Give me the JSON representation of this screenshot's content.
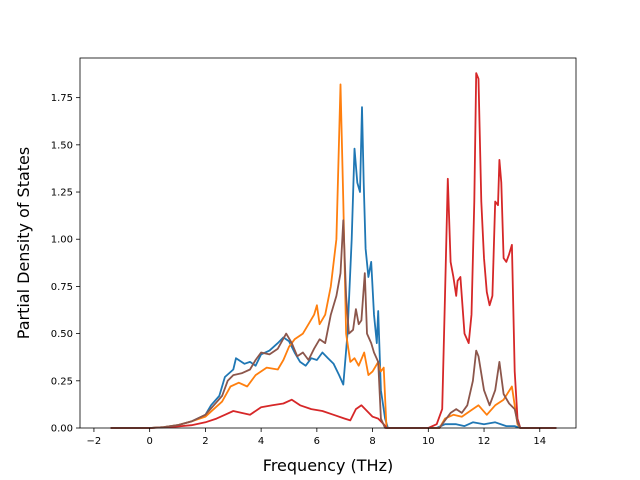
{
  "chart_data": {
    "type": "line",
    "title": "",
    "xlabel": "Frequency (THz)",
    "ylabel": "Partial Density of States",
    "xlim": [
      -2.5,
      15.3
    ],
    "ylim": [
      0,
      1.96
    ],
    "x_ticks": [
      -2,
      0,
      2,
      4,
      6,
      8,
      10,
      12,
      14
    ],
    "x_tick_labels": [
      "−2",
      "0",
      "2",
      "4",
      "6",
      "8",
      "10",
      "12",
      "14"
    ],
    "y_ticks": [
      0,
      0.25,
      0.5,
      0.75,
      1.0,
      1.25,
      1.5,
      1.75
    ],
    "y_tick_labels": [
      "0.00",
      "0.25",
      "0.50",
      "0.75",
      "1.00",
      "1.25",
      "1.50",
      "1.75"
    ],
    "grid": false,
    "legend": "none",
    "series": [
      {
        "color": "#1f77b4",
        "points": [
          [
            -1.4,
            0
          ],
          [
            -0.5,
            0
          ],
          [
            0,
            0
          ],
          [
            0.5,
            0.005
          ],
          [
            1,
            0.015
          ],
          [
            1.5,
            0.035
          ],
          [
            2,
            0.07
          ],
          [
            2.2,
            0.12
          ],
          [
            2.5,
            0.17
          ],
          [
            2.7,
            0.27
          ],
          [
            3,
            0.31
          ],
          [
            3.1,
            0.37
          ],
          [
            3.4,
            0.34
          ],
          [
            3.6,
            0.35
          ],
          [
            3.8,
            0.33
          ],
          [
            4,
            0.39
          ],
          [
            4.3,
            0.41
          ],
          [
            4.6,
            0.45
          ],
          [
            4.8,
            0.48
          ],
          [
            5,
            0.46
          ],
          [
            5.2,
            0.4
          ],
          [
            5.4,
            0.35
          ],
          [
            5.6,
            0.33
          ],
          [
            5.8,
            0.37
          ],
          [
            6,
            0.36
          ],
          [
            6.2,
            0.4
          ],
          [
            6.4,
            0.37
          ],
          [
            6.6,
            0.34
          ],
          [
            6.8,
            0.28
          ],
          [
            6.95,
            0.23
          ],
          [
            7.1,
            0.5
          ],
          [
            7.25,
            1.0
          ],
          [
            7.35,
            1.48
          ],
          [
            7.45,
            1.3
          ],
          [
            7.55,
            1.25
          ],
          [
            7.62,
            1.7
          ],
          [
            7.68,
            1.3
          ],
          [
            7.75,
            0.95
          ],
          [
            7.85,
            0.8
          ],
          [
            7.95,
            0.88
          ],
          [
            8.05,
            0.6
          ],
          [
            8.15,
            0.45
          ],
          [
            8.2,
            0.62
          ],
          [
            8.3,
            0.2
          ],
          [
            8.45,
            0.05
          ],
          [
            8.55,
            0
          ],
          [
            9,
            0
          ],
          [
            10,
            0
          ],
          [
            10.3,
            0
          ],
          [
            10.6,
            0.02
          ],
          [
            11,
            0.02
          ],
          [
            11.3,
            0.01
          ],
          [
            11.6,
            0.03
          ],
          [
            12,
            0.02
          ],
          [
            12.4,
            0.03
          ],
          [
            12.8,
            0.01
          ],
          [
            13.1,
            0.01
          ],
          [
            13.3,
            0
          ],
          [
            14.6,
            0
          ]
        ]
      },
      {
        "color": "#ff7f0e",
        "points": [
          [
            -1.4,
            0
          ],
          [
            -0.5,
            0
          ],
          [
            0,
            0
          ],
          [
            0.5,
            0.005
          ],
          [
            1,
            0.015
          ],
          [
            1.5,
            0.035
          ],
          [
            2,
            0.06
          ],
          [
            2.3,
            0.1
          ],
          [
            2.6,
            0.14
          ],
          [
            2.9,
            0.22
          ],
          [
            3.2,
            0.24
          ],
          [
            3.5,
            0.22
          ],
          [
            3.8,
            0.28
          ],
          [
            4.2,
            0.32
          ],
          [
            4.6,
            0.31
          ],
          [
            4.8,
            0.36
          ],
          [
            5,
            0.43
          ],
          [
            5.2,
            0.47
          ],
          [
            5.5,
            0.5
          ],
          [
            5.7,
            0.55
          ],
          [
            5.9,
            0.6
          ],
          [
            6,
            0.65
          ],
          [
            6.1,
            0.55
          ],
          [
            6.3,
            0.6
          ],
          [
            6.5,
            0.75
          ],
          [
            6.7,
            1.0
          ],
          [
            6.85,
            1.82
          ],
          [
            6.95,
            1.2
          ],
          [
            7.05,
            0.5
          ],
          [
            7.2,
            0.35
          ],
          [
            7.35,
            0.37
          ],
          [
            7.5,
            0.33
          ],
          [
            7.7,
            0.4
          ],
          [
            7.85,
            0.28
          ],
          [
            8,
            0.3
          ],
          [
            8.2,
            0.35
          ],
          [
            8.3,
            0.3
          ],
          [
            8.4,
            0.32
          ],
          [
            8.5,
            0
          ],
          [
            9,
            0
          ],
          [
            10,
            0
          ],
          [
            10.4,
            0
          ],
          [
            10.6,
            0.05
          ],
          [
            10.9,
            0.07
          ],
          [
            11.2,
            0.06
          ],
          [
            11.5,
            0.09
          ],
          [
            11.8,
            0.12
          ],
          [
            12.1,
            0.07
          ],
          [
            12.4,
            0.12
          ],
          [
            12.7,
            0.15
          ],
          [
            13,
            0.22
          ],
          [
            13.2,
            0.02
          ],
          [
            13.3,
            0
          ],
          [
            14.6,
            0
          ]
        ]
      },
      {
        "color": "#d62728",
        "points": [
          [
            -1.4,
            0
          ],
          [
            -0.5,
            0
          ],
          [
            0,
            0
          ],
          [
            0.5,
            0.003
          ],
          [
            1,
            0.008
          ],
          [
            1.5,
            0.015
          ],
          [
            2,
            0.03
          ],
          [
            2.4,
            0.05
          ],
          [
            2.7,
            0.07
          ],
          [
            3,
            0.09
          ],
          [
            3.3,
            0.08
          ],
          [
            3.6,
            0.07
          ],
          [
            4,
            0.11
          ],
          [
            4.4,
            0.12
          ],
          [
            4.8,
            0.13
          ],
          [
            5.1,
            0.15
          ],
          [
            5.4,
            0.12
          ],
          [
            5.8,
            0.1
          ],
          [
            6.2,
            0.09
          ],
          [
            6.6,
            0.07
          ],
          [
            7,
            0.05
          ],
          [
            7.2,
            0.04
          ],
          [
            7.4,
            0.1
          ],
          [
            7.6,
            0.12
          ],
          [
            7.8,
            0.09
          ],
          [
            8,
            0.06
          ],
          [
            8.2,
            0.05
          ],
          [
            8.4,
            0.02
          ],
          [
            8.5,
            0
          ],
          [
            9,
            0
          ],
          [
            10,
            0
          ],
          [
            10.3,
            0.02
          ],
          [
            10.5,
            0.1
          ],
          [
            10.6,
            0.7
          ],
          [
            10.7,
            1.32
          ],
          [
            10.8,
            0.88
          ],
          [
            10.9,
            0.8
          ],
          [
            11,
            0.7
          ],
          [
            11.05,
            0.78
          ],
          [
            11.15,
            0.8
          ],
          [
            11.3,
            0.5
          ],
          [
            11.45,
            0.45
          ],
          [
            11.55,
            0.6
          ],
          [
            11.65,
            1.2
          ],
          [
            11.72,
            1.88
          ],
          [
            11.8,
            1.85
          ],
          [
            11.9,
            1.2
          ],
          [
            12,
            0.9
          ],
          [
            12.1,
            0.72
          ],
          [
            12.2,
            0.65
          ],
          [
            12.3,
            0.7
          ],
          [
            12.4,
            1.2
          ],
          [
            12.5,
            1.18
          ],
          [
            12.55,
            1.42
          ],
          [
            12.62,
            1.3
          ],
          [
            12.7,
            0.9
          ],
          [
            12.8,
            0.88
          ],
          [
            12.9,
            0.92
          ],
          [
            13,
            0.97
          ],
          [
            13.1,
            0.3
          ],
          [
            13.2,
            0.05
          ],
          [
            13.3,
            0
          ],
          [
            14.6,
            0
          ]
        ]
      },
      {
        "color": "#8c564b",
        "points": [
          [
            -1.4,
            0
          ],
          [
            -0.5,
            0
          ],
          [
            0,
            0
          ],
          [
            0.5,
            0.005
          ],
          [
            1,
            0.015
          ],
          [
            1.5,
            0.035
          ],
          [
            2,
            0.07
          ],
          [
            2.3,
            0.12
          ],
          [
            2.6,
            0.17
          ],
          [
            2.8,
            0.25
          ],
          [
            3,
            0.28
          ],
          [
            3.3,
            0.29
          ],
          [
            3.6,
            0.31
          ],
          [
            3.8,
            0.36
          ],
          [
            4,
            0.4
          ],
          [
            4.3,
            0.39
          ],
          [
            4.6,
            0.42
          ],
          [
            4.9,
            0.5
          ],
          [
            5.1,
            0.45
          ],
          [
            5.3,
            0.38
          ],
          [
            5.5,
            0.4
          ],
          [
            5.7,
            0.36
          ],
          [
            5.9,
            0.42
          ],
          [
            6.1,
            0.47
          ],
          [
            6.3,
            0.45
          ],
          [
            6.5,
            0.6
          ],
          [
            6.7,
            0.7
          ],
          [
            6.85,
            0.82
          ],
          [
            6.95,
            1.1
          ],
          [
            7.05,
            0.7
          ],
          [
            7.15,
            0.5
          ],
          [
            7.3,
            0.52
          ],
          [
            7.4,
            0.63
          ],
          [
            7.5,
            0.55
          ],
          [
            7.6,
            0.57
          ],
          [
            7.72,
            0.82
          ],
          [
            7.8,
            0.5
          ],
          [
            7.95,
            0.45
          ],
          [
            8.05,
            0.4
          ],
          [
            8.2,
            0.35
          ],
          [
            8.3,
            0.05
          ],
          [
            8.45,
            0
          ],
          [
            9,
            0
          ],
          [
            10,
            0
          ],
          [
            10.4,
            0
          ],
          [
            10.6,
            0.04
          ],
          [
            10.8,
            0.08
          ],
          [
            11,
            0.1
          ],
          [
            11.2,
            0.08
          ],
          [
            11.4,
            0.12
          ],
          [
            11.6,
            0.25
          ],
          [
            11.72,
            0.41
          ],
          [
            11.8,
            0.38
          ],
          [
            12,
            0.2
          ],
          [
            12.2,
            0.12
          ],
          [
            12.4,
            0.2
          ],
          [
            12.55,
            0.35
          ],
          [
            12.7,
            0.18
          ],
          [
            12.9,
            0.13
          ],
          [
            13.1,
            0.1
          ],
          [
            13.2,
            0.03
          ],
          [
            13.3,
            0
          ],
          [
            14.6,
            0
          ]
        ]
      }
    ]
  }
}
